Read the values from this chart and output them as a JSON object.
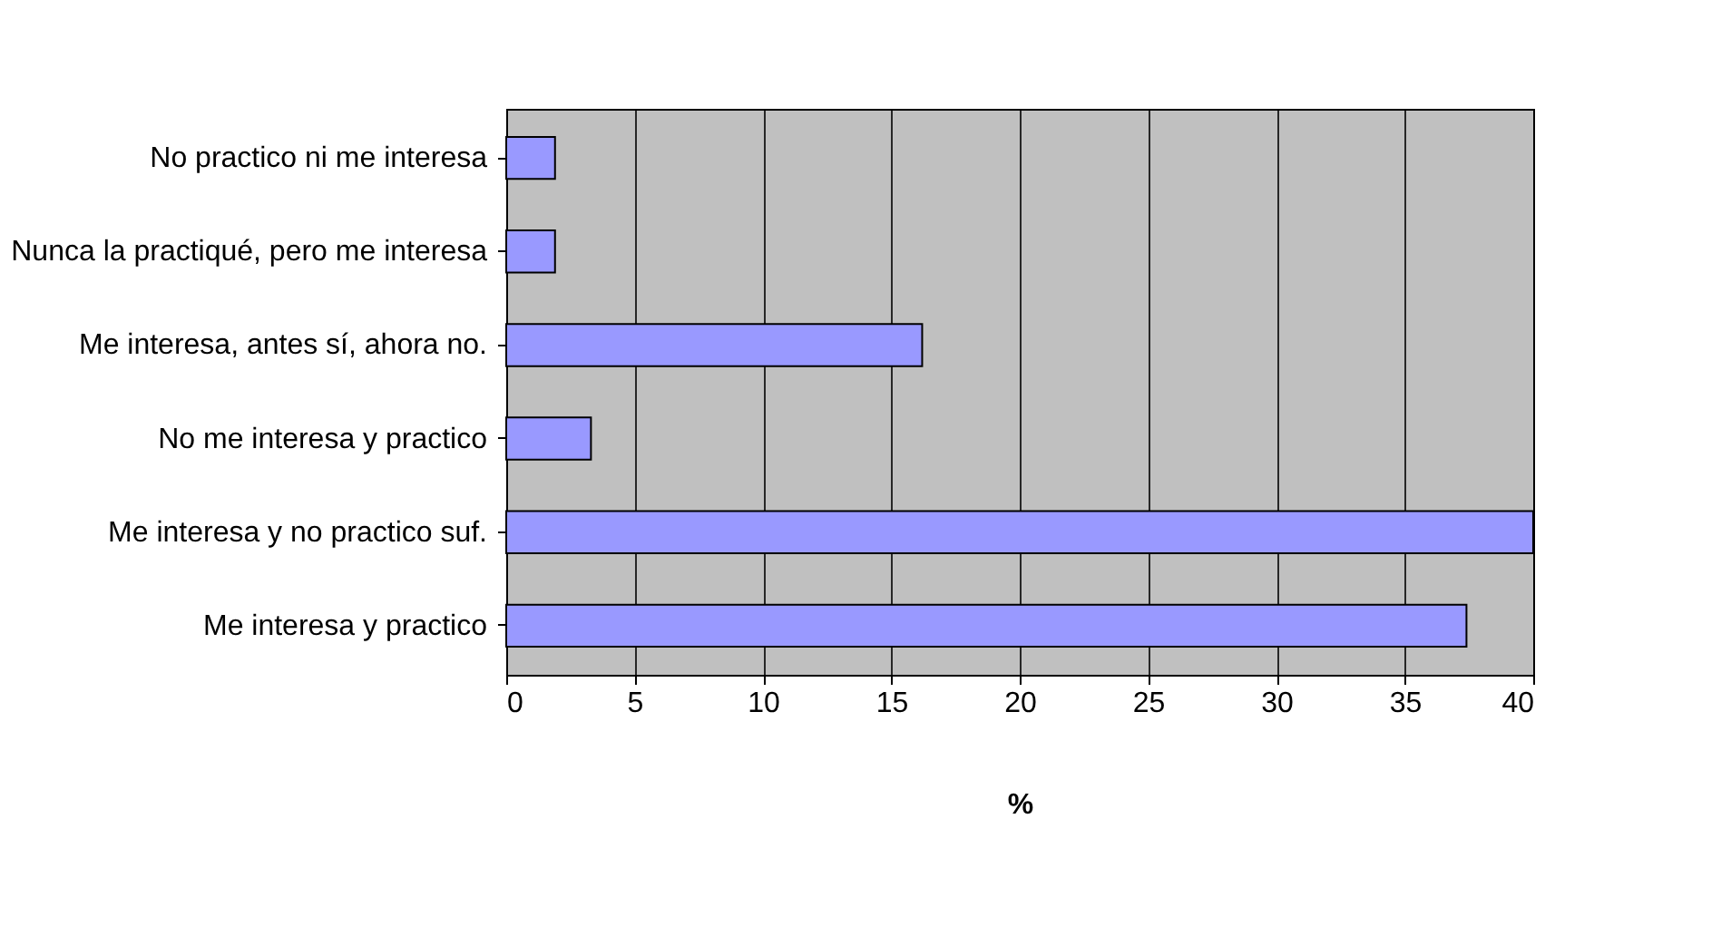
{
  "chart_data": {
    "type": "bar",
    "orientation": "horizontal",
    "categories": [
      "No practico ni me interesa",
      "Nunca la practiqué, pero me interesa",
      "Me interesa, antes sí, ahora no.",
      "No me interesa y practico",
      "Me interesa y no practico suf.",
      "Me interesa y practico"
    ],
    "values": [
      1.9,
      1.9,
      16.2,
      3.3,
      40,
      37.4
    ],
    "color": "#9999ff",
    "xlabel": "%",
    "xlim": [
      0,
      40
    ],
    "xticks": [
      0,
      5,
      10,
      15,
      20,
      25,
      30,
      35,
      40
    ],
    "grid": "x"
  }
}
